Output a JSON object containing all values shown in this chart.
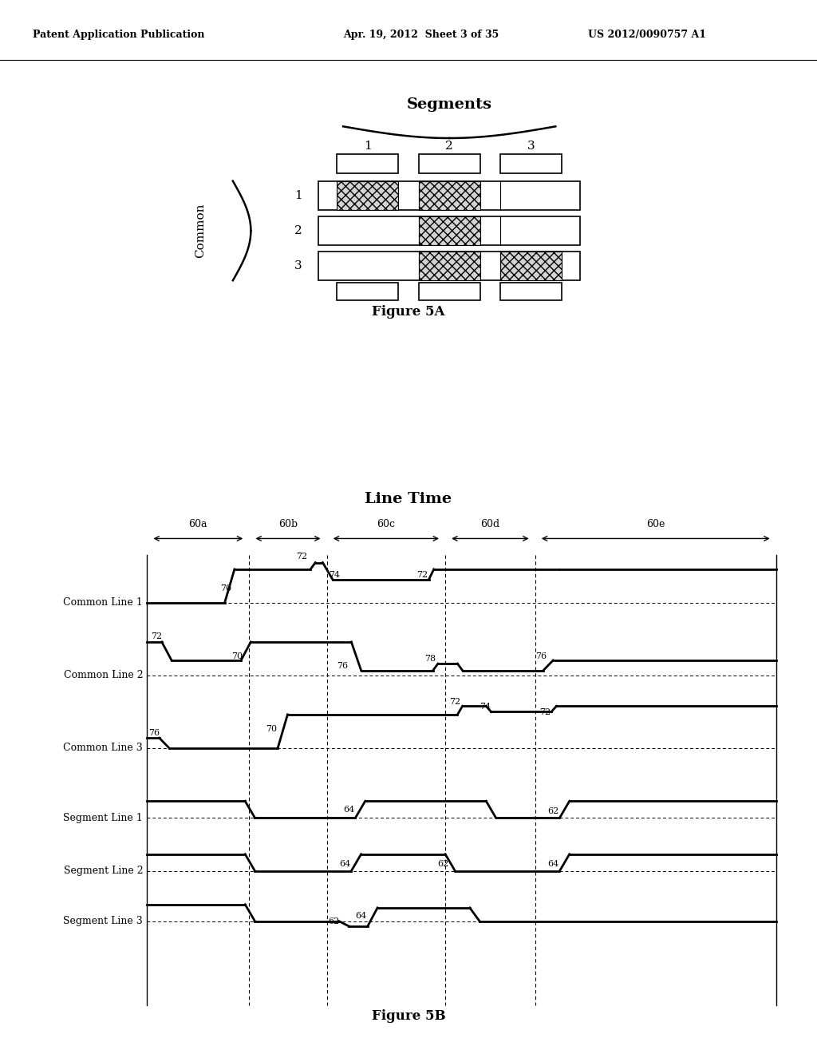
{
  "bg_color": "#ffffff",
  "header_left": "Patent Application Publication",
  "header_mid": "Apr. 19, 2012  Sheet 3 of 35",
  "header_right": "US 2012/0090757 A1",
  "fig5a_title": "Segments",
  "fig5a_label": "Common",
  "fig5a_caption": "Figure 5A",
  "fig5b_title": "Line Time",
  "fig5b_caption": "Figure 5B",
  "segments_labels": [
    "1",
    "2",
    "3"
  ],
  "common_labels": [
    "1",
    "2",
    "3"
  ],
  "period_labels": [
    "60a",
    "60b",
    "60c",
    "60d",
    "60e"
  ],
  "waveform_labels_common1": [
    "70",
    "72",
    "74",
    "72"
  ],
  "waveform_labels_common2": [
    "72",
    "70",
    "76",
    "78",
    "76"
  ],
  "waveform_labels_common3": [
    "76",
    "70",
    "72",
    "74",
    "72"
  ],
  "waveform_labels_seg1": [
    "64",
    "62"
  ],
  "waveform_labels_seg2": [
    "64",
    "62",
    "64"
  ],
  "waveform_labels_seg3": [
    "62",
    "64"
  ],
  "signal_names": [
    "Common Line 1",
    "Common Line 2",
    "Common Line 3",
    "Segment Line 1",
    "Segment Line 2",
    "Segment Line 3"
  ]
}
